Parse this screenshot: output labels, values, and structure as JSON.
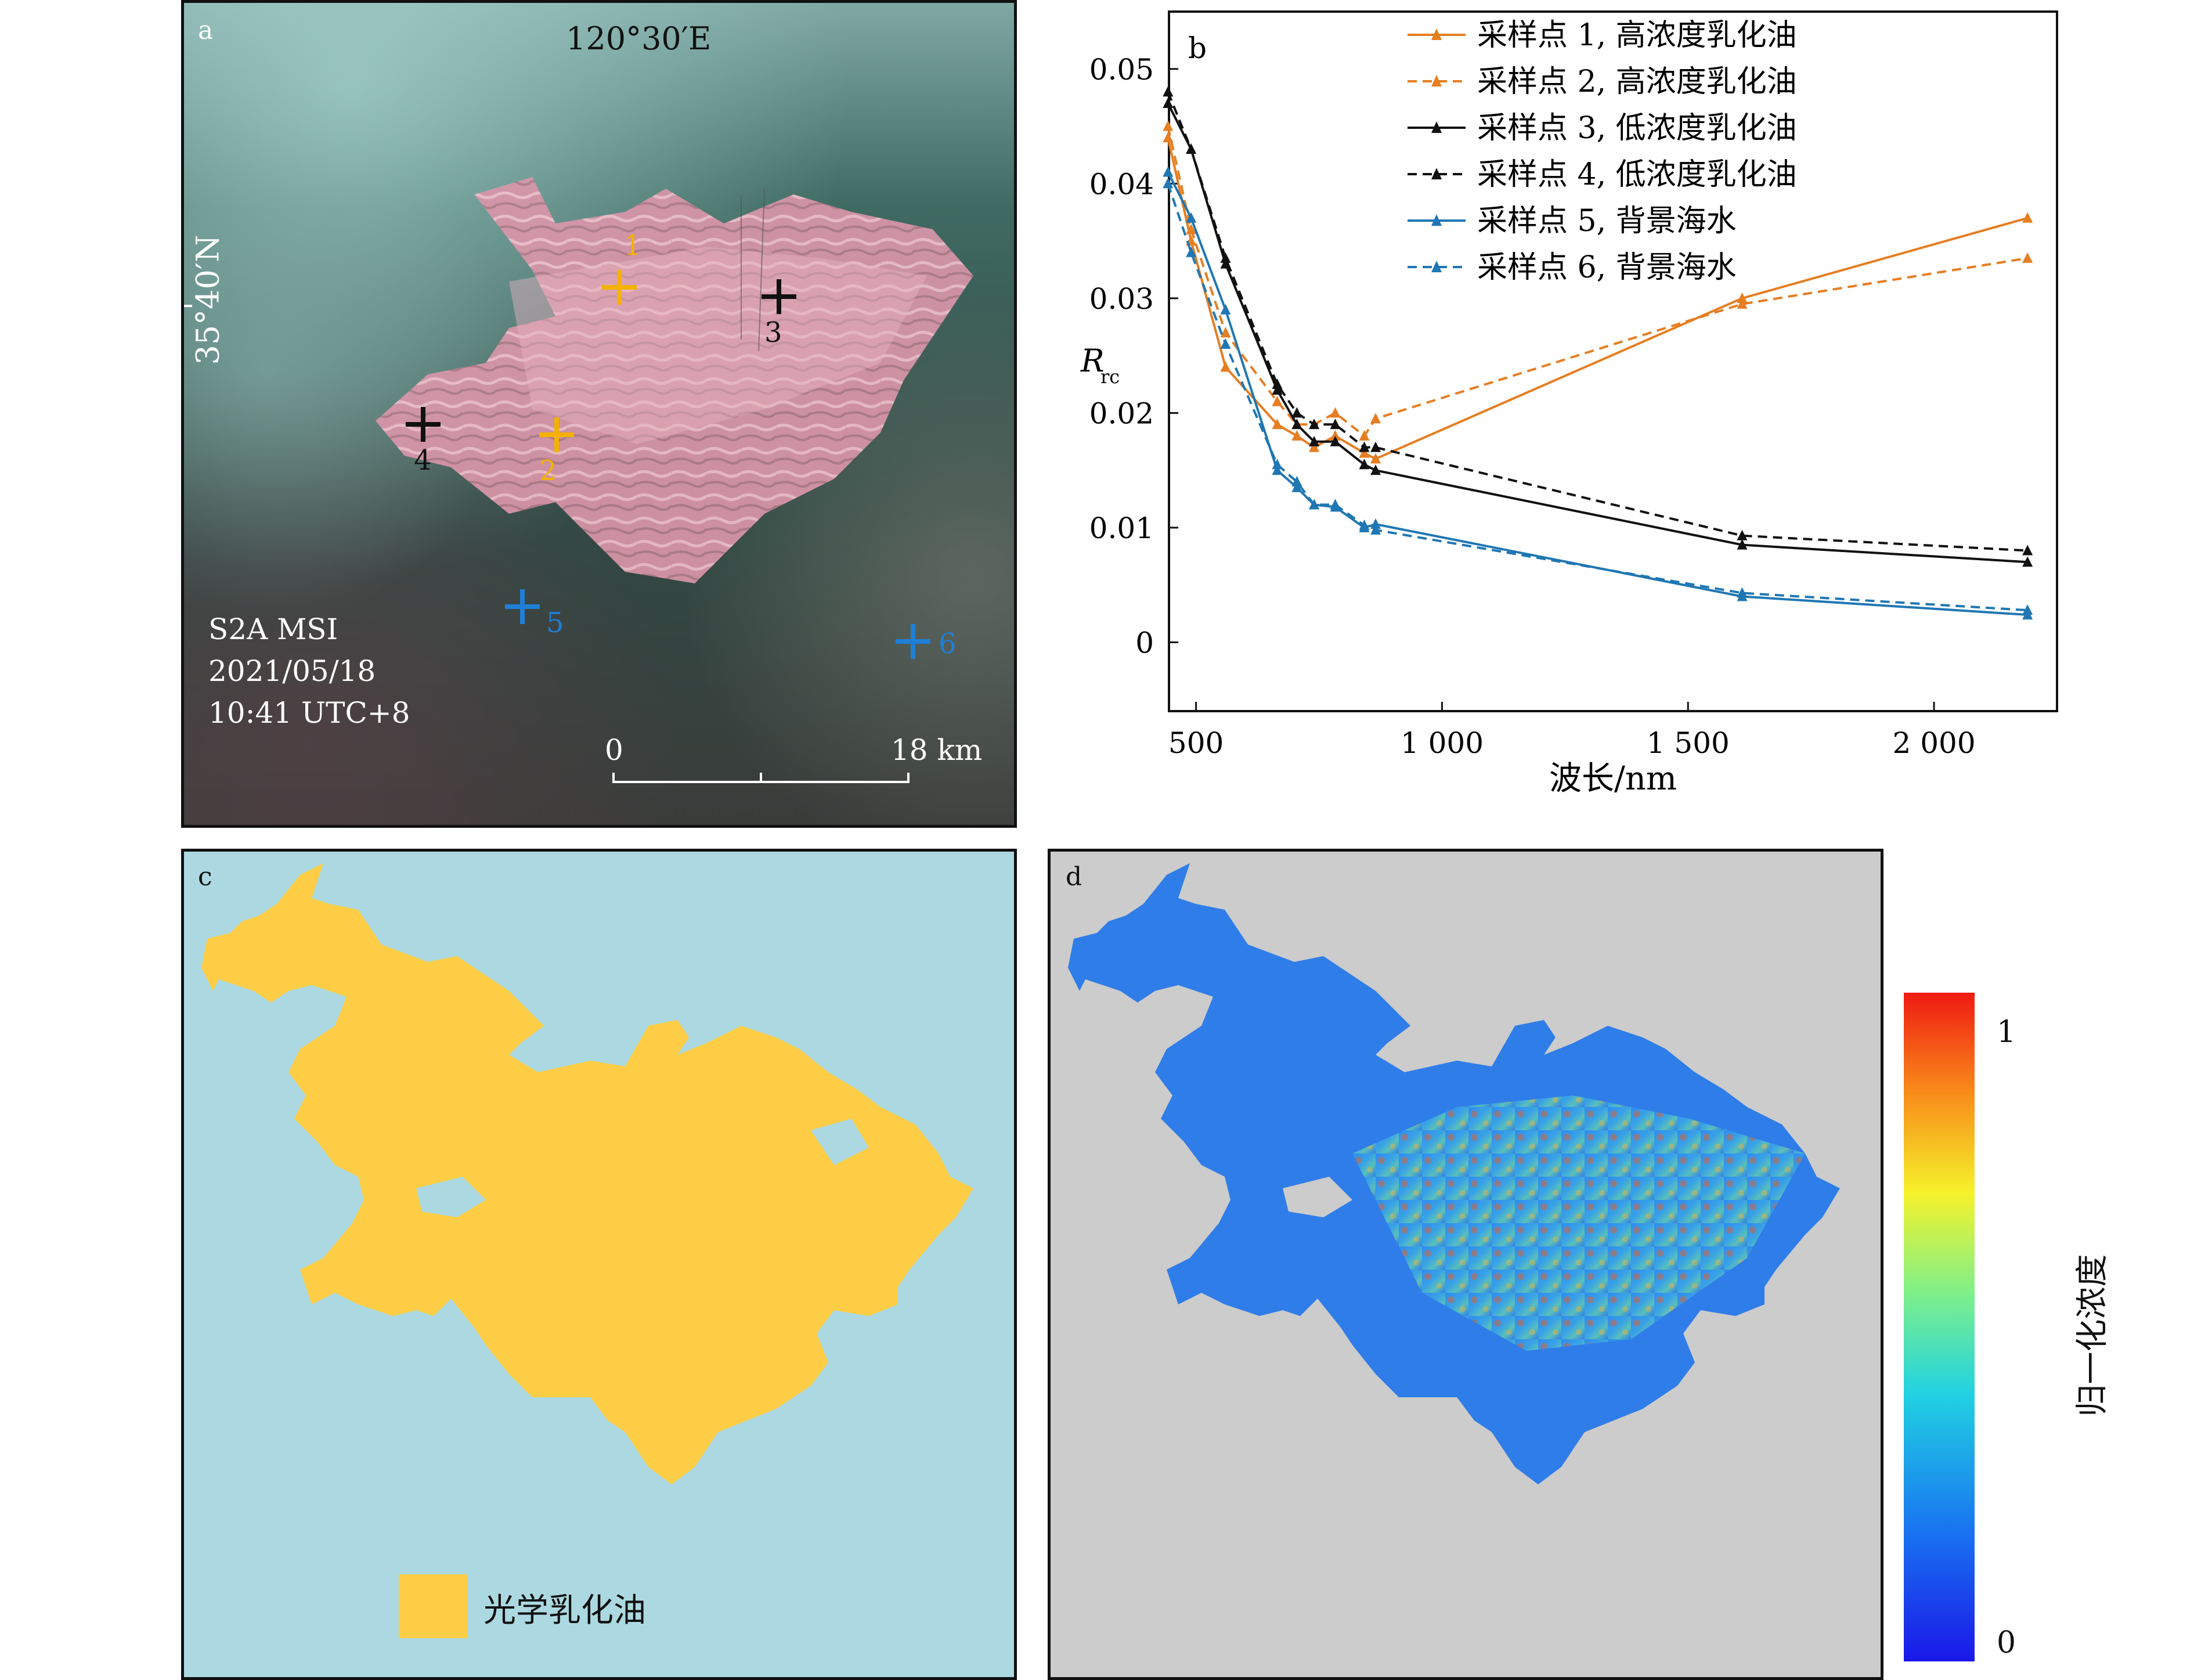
{
  "panel_a": {
    "letter": "a",
    "lon_label": "120°30′E",
    "lat_label": "35°40′N",
    "sensor": "S2A MSI",
    "date": "2021/05/18",
    "time": "10:41 UTC+8",
    "scale_start": "0",
    "scale_end": "18 km",
    "points": [
      {
        "id": "1",
        "color": "#f5b100"
      },
      {
        "id": "2",
        "color": "#f5b100"
      },
      {
        "id": "3",
        "color": "#111111"
      },
      {
        "id": "4",
        "color": "#111111"
      },
      {
        "id": "5",
        "color": "#1f7fd6"
      },
      {
        "id": "6",
        "color": "#1f7fd6"
      }
    ]
  },
  "chart_data": {
    "letter": "b",
    "type": "line",
    "xlabel": "波长/nm",
    "ylabel_main": "R",
    "ylabel_sub": "rc",
    "xlim": [
      445,
      2250
    ],
    "ylim": [
      -0.006,
      0.055
    ],
    "x_ticks": [
      500,
      1000,
      1500,
      2000
    ],
    "x_tick_labels": [
      "500",
      "1 000",
      "1 500",
      "2 000"
    ],
    "y_ticks": [
      0,
      0.01,
      0.02,
      0.03,
      0.04,
      0.05
    ],
    "y_tick_labels": [
      "0",
      "0.01",
      "0.02",
      "0.03",
      "0.04",
      "0.05"
    ],
    "legend_position": "top-right",
    "x": [
      443,
      490,
      560,
      665,
      705,
      740,
      783,
      842,
      865,
      1610,
      2190
    ],
    "series": [
      {
        "name": "采样点 1, 高浓度乳化油",
        "color": "#e67e22",
        "dashed": false,
        "values": [
          0.044,
          0.035,
          0.024,
          0.019,
          0.018,
          0.017,
          0.018,
          0.0165,
          0.016,
          0.03,
          0.037
        ]
      },
      {
        "name": "采样点 2, 高浓度乳化油",
        "color": "#e67e22",
        "dashed": true,
        "values": [
          0.045,
          0.036,
          0.027,
          0.021,
          0.019,
          0.019,
          0.02,
          0.018,
          0.0195,
          0.0295,
          0.0335
        ]
      },
      {
        "name": "采样点 3, 低浓度乳化油",
        "color": "#111111",
        "dashed": false,
        "values": [
          0.047,
          0.043,
          0.033,
          0.022,
          0.019,
          0.0175,
          0.0175,
          0.0155,
          0.015,
          0.0085,
          0.007
        ]
      },
      {
        "name": "采样点 4, 低浓度乳化油",
        "color": "#111111",
        "dashed": true,
        "values": [
          0.048,
          0.043,
          0.0335,
          0.0225,
          0.02,
          0.019,
          0.019,
          0.017,
          0.017,
          0.0093,
          0.008
        ]
      },
      {
        "name": "采样点 5, 背景海水",
        "color": "#1f77b4",
        "dashed": false,
        "values": [
          0.041,
          0.037,
          0.029,
          0.015,
          0.0135,
          0.012,
          0.0118,
          0.01,
          0.0103,
          0.004,
          0.0024
        ]
      },
      {
        "name": "采样点 6, 背景海水",
        "color": "#1f77b4",
        "dashed": true,
        "values": [
          0.04,
          0.034,
          0.026,
          0.0155,
          0.014,
          0.012,
          0.012,
          0.0102,
          0.0098,
          0.0043,
          0.0028
        ]
      }
    ]
  },
  "panel_c": {
    "letter": "c",
    "legend_label": "光学乳化油",
    "sea_color": "#acd9e1",
    "oil_color": "#fecd45"
  },
  "panel_d": {
    "letter": "d",
    "background_color": "#cccccc",
    "colorbar_max": "1",
    "colorbar_min": "0",
    "colorbar_title": "归一化浓度"
  }
}
